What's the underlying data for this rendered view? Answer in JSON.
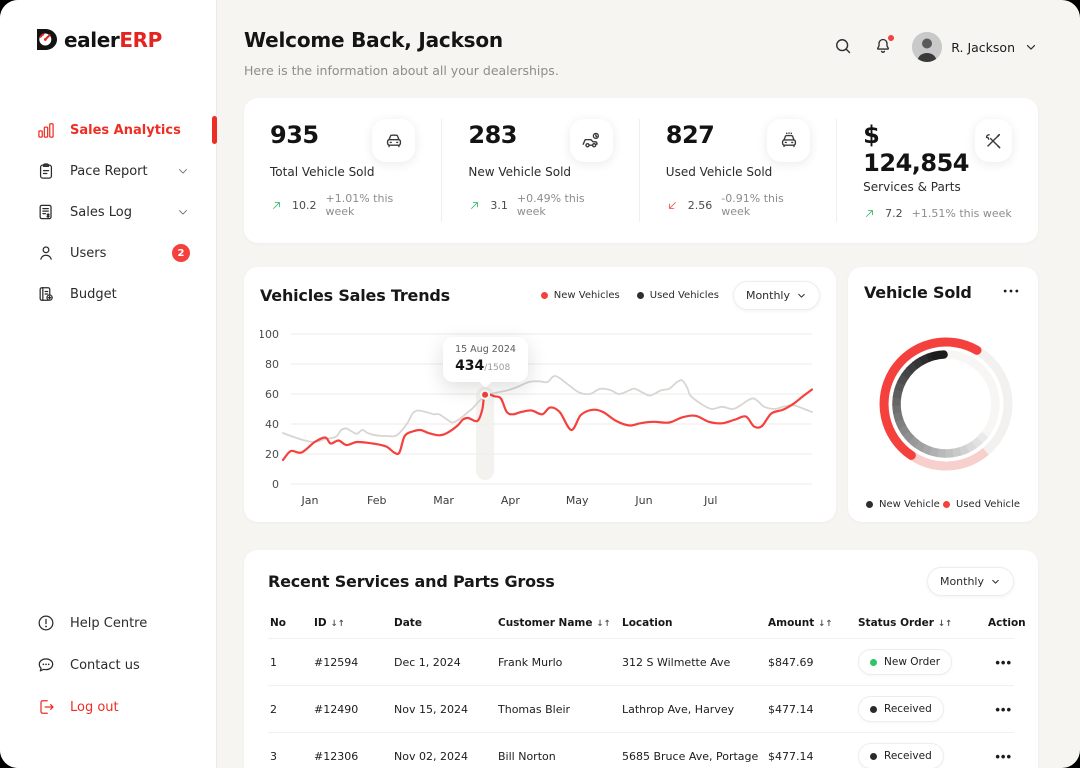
{
  "app": {
    "name": "DealerERP",
    "wordmark_black": "ealer",
    "wordmark_red": "ERP"
  },
  "header": {
    "title": "Welcome Back, Jackson",
    "subtitle": "Here is the information about all your dealerships.",
    "user_name": "R. Jackson",
    "icons": [
      "search-icon",
      "bell-icon",
      "chevron-down-icon"
    ],
    "notification_dot_color": "#f5413d"
  },
  "sidebar": {
    "items": [
      {
        "label": "Sales Analytics",
        "icon": "bar-chart",
        "active": true
      },
      {
        "label": "Pace Report",
        "icon": "clipboard",
        "chevron": true
      },
      {
        "label": "Sales Log",
        "icon": "invoice",
        "chevron": true
      },
      {
        "label": "Users",
        "icon": "user",
        "badge": "2"
      },
      {
        "label": "Budget",
        "icon": "ledger"
      }
    ],
    "footer_items": [
      {
        "label": "Help Centre",
        "icon": "help"
      },
      {
        "label": "Contact us",
        "icon": "chat"
      },
      {
        "label": "Log out",
        "icon": "logout",
        "danger": true
      }
    ]
  },
  "stats": [
    {
      "value": "935",
      "label": "Total Vehicle Sold",
      "icon": "car-front",
      "trend": "up",
      "trend_value": "10.2",
      "trend_text": "+1.01% this week"
    },
    {
      "value": "283",
      "label": "New Vehicle Sold",
      "icon": "car-new",
      "trend": "up",
      "trend_value": "3.1",
      "trend_text": "+0.49% this week"
    },
    {
      "value": "827",
      "label": "Used Vehicle Sold",
      "icon": "car-used",
      "trend": "down",
      "trend_value": "2.56",
      "trend_text": "-0.91% this week"
    },
    {
      "value": "$ 124,854",
      "label": "Services & Parts",
      "icon": "tools",
      "trend": "up",
      "trend_value": "7.2",
      "trend_text": "+1.51% this week"
    }
  ],
  "trends_card": {
    "title": "Vehicles Sales Trends",
    "period": "Monthly",
    "legend": [
      {
        "label": "New Vehicles",
        "color": "#f5413d"
      },
      {
        "label": "Used Vehicles",
        "color": "#2e2e2e"
      }
    ]
  },
  "donut_card": {
    "title": "Vehicle Sold",
    "menu_glyph": "dots-icon",
    "legend": [
      {
        "label": "New Vehicle",
        "color": "#2e2e2e"
      },
      {
        "label": "Used Vehicle",
        "color": "#f5413d"
      }
    ]
  },
  "chart_data": [
    {
      "type": "line",
      "title": "Vehicles Sales Trends",
      "x_labels": [
        "Jan",
        "Feb",
        "Mar",
        "Apr",
        "May",
        "Jun",
        "Jul"
      ],
      "ylim": [
        0,
        100
      ],
      "yticks": [
        0,
        20,
        40,
        60,
        80,
        100
      ],
      "grid": "horizontal",
      "legend_position": "top-right",
      "series": [
        {
          "name": "New Vehicles",
          "color": "#f5413d",
          "width": 2.2,
          "points": [
            [
              0,
              16
            ],
            [
              1.5,
              22
            ],
            [
              3.5,
              21
            ],
            [
              6,
              28
            ],
            [
              8,
              31
            ],
            [
              9,
              27
            ],
            [
              10.5,
              29
            ],
            [
              12,
              26
            ],
            [
              14,
              28
            ],
            [
              17,
              27
            ],
            [
              19.5,
              25
            ],
            [
              21,
              21
            ],
            [
              22,
              21
            ],
            [
              23,
              32
            ],
            [
              24.5,
              35
            ],
            [
              26,
              36
            ],
            [
              27.5,
              34
            ],
            [
              29.5,
              32.5
            ],
            [
              31,
              34
            ],
            [
              33,
              39
            ],
            [
              34,
              43
            ],
            [
              35,
              44
            ],
            [
              36.3,
              42
            ],
            [
              37,
              43
            ],
            [
              37.7,
              50
            ],
            [
              38.2,
              59.5
            ],
            [
              40,
              58.5
            ],
            [
              41.2,
              57
            ],
            [
              42.3,
              48
            ],
            [
              43.5,
              46.5
            ],
            [
              45,
              48
            ],
            [
              47,
              49
            ],
            [
              49,
              46.5
            ],
            [
              50.5,
              51
            ],
            [
              52.3,
              48
            ],
            [
              54.5,
              36
            ],
            [
              56.3,
              46
            ],
            [
              58.5,
              49.5
            ],
            [
              60.5,
              48
            ],
            [
              63,
              42
            ],
            [
              65.5,
              39
            ],
            [
              67.5,
              40.5
            ],
            [
              70,
              41.5
            ],
            [
              73,
              41
            ],
            [
              75.5,
              44.5
            ],
            [
              78,
              45.5
            ],
            [
              80.5,
              41.5
            ],
            [
              83,
              40.5
            ],
            [
              85.5,
              43
            ],
            [
              87.5,
              45
            ],
            [
              89,
              38.5
            ],
            [
              90.5,
              38.5
            ],
            [
              92.3,
              47
            ],
            [
              94.5,
              49.5
            ],
            [
              96.5,
              53.5
            ],
            [
              98.3,
              58.5
            ],
            [
              100,
              63
            ]
          ]
        },
        {
          "name": "Used Vehicles",
          "color": "#d7d6d3",
          "width": 1.8,
          "points": [
            [
              0,
              34
            ],
            [
              2.3,
              31
            ],
            [
              4.2,
              29
            ],
            [
              6,
              28
            ],
            [
              8,
              30
            ],
            [
              10,
              31.5
            ],
            [
              11,
              36
            ],
            [
              12,
              37
            ],
            [
              13,
              35
            ],
            [
              14,
              33.5
            ],
            [
              15,
              36
            ],
            [
              16,
              34
            ],
            [
              17.5,
              32.5
            ],
            [
              19.5,
              32
            ],
            [
              21.5,
              32.5
            ],
            [
              23.4,
              40
            ],
            [
              24.5,
              47
            ],
            [
              25.5,
              49
            ],
            [
              27,
              48
            ],
            [
              28.5,
              46.5
            ],
            [
              29.5,
              46.5
            ],
            [
              31,
              43
            ],
            [
              32,
              41
            ],
            [
              33,
              42.5
            ],
            [
              34,
              45
            ],
            [
              35,
              48
            ],
            [
              36,
              51
            ],
            [
              37,
              55
            ],
            [
              38.5,
              59
            ],
            [
              40.5,
              61
            ],
            [
              42.5,
              62.5
            ],
            [
              44.5,
              65
            ],
            [
              46.5,
              68
            ],
            [
              48.5,
              68.5
            ],
            [
              50,
              68
            ],
            [
              51.5,
              72
            ],
            [
              54,
              66
            ],
            [
              56,
              61
            ],
            [
              58,
              60
            ],
            [
              60,
              63.5
            ],
            [
              62,
              62.5
            ],
            [
              63.5,
              60
            ],
            [
              65.5,
              62.5
            ],
            [
              66.5,
              63.5
            ],
            [
              68.5,
              60
            ],
            [
              69.5,
              59
            ],
            [
              71.5,
              62.5
            ],
            [
              73,
              63.5
            ],
            [
              74.5,
              68
            ],
            [
              75.5,
              69
            ],
            [
              76.5,
              63.5
            ],
            [
              77,
              59
            ],
            [
              79,
              53.5
            ],
            [
              81,
              50
            ],
            [
              83,
              51.5
            ],
            [
              85,
              50
            ],
            [
              86.5,
              52.5
            ],
            [
              88,
              56
            ],
            [
              89,
              57
            ],
            [
              90,
              54.5
            ],
            [
              91,
              51.5
            ],
            [
              93,
              50
            ],
            [
              94.5,
              51.5
            ],
            [
              96.5,
              52.5
            ],
            [
              98.5,
              50
            ],
            [
              100,
              48
            ]
          ]
        }
      ],
      "annotation": {
        "x_frac": 38.2,
        "value": 59.5,
        "label_date": "15 Aug 2024",
        "label_value": "434",
        "label_total": "/1508",
        "highlight_color": "#f0eeea"
      }
    },
    {
      "type": "donut",
      "title": "Vehicle Sold",
      "legend": [
        "New Vehicle",
        "Used Vehicle"
      ],
      "rings": [
        {
          "name": "Used Vehicle",
          "radius": 62,
          "stroke": 9,
          "track_color": "#f3f1ef",
          "segments": [
            {
              "start_deg": 140,
              "end_deg": 214,
              "color": "#f7d0ce",
              "rounded": false
            },
            {
              "start_deg": 214,
              "end_deg": 390,
              "color": "#f5413d",
              "rounded": true
            }
          ]
        },
        {
          "name": "New Vehicle",
          "radius": 49.5,
          "stroke": 8.5,
          "track_color": "#f8f6f4",
          "gradient_arc": {
            "start_deg": 128,
            "end_deg": 356,
            "from_color": "#eaeaea",
            "to_color": "#141414",
            "rounded_end": true
          }
        }
      ]
    }
  ],
  "table": {
    "title": "Recent Services and Parts Gross",
    "period": "Monthly",
    "sort_glyph": "↓↑",
    "action_glyph": "•••",
    "columns": [
      {
        "label": "No"
      },
      {
        "label": "ID",
        "sortable": true
      },
      {
        "label": "Date"
      },
      {
        "label": "Customer Name",
        "sortable": true
      },
      {
        "label": "Location"
      },
      {
        "label": "Amount",
        "sortable": true
      },
      {
        "label": "Status Order",
        "sortable": true
      },
      {
        "label": "Action",
        "align": "right"
      }
    ],
    "rows": [
      {
        "no": "1",
        "id": "#12594",
        "date": "Dec 1, 2024",
        "customer": "Frank Murlo",
        "location": "312 S Wilmette Ave",
        "amount": "$847.69",
        "status": "New Order",
        "status_color": "#2fc465"
      },
      {
        "no": "2",
        "id": "#12490",
        "date": "Nov 15, 2024",
        "customer": "Thomas  Bleir",
        "location": "Lathrop Ave, Harvey",
        "amount": "$477.14",
        "status": "Received",
        "status_color": "#2b2b2b"
      },
      {
        "no": "3",
        "id": "#12306",
        "date": "Nov 02, 2024",
        "customer": "Bill Norton",
        "location": "5685 Bruce Ave, Portage",
        "amount": "$477.14",
        "status": "Received",
        "status_color": "#2b2b2b"
      }
    ]
  }
}
